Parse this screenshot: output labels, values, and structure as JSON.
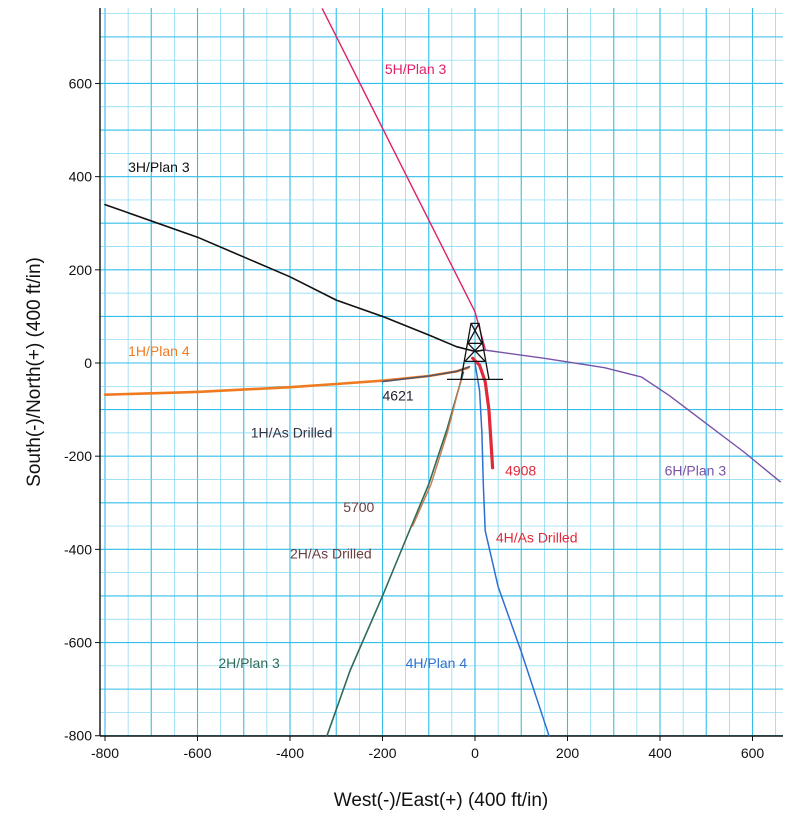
{
  "chart_data": {
    "type": "line",
    "xlabel": "West(-)/East(+) (400 ft/in)",
    "ylabel": "South(-)/North(+) (400 ft/in)",
    "xlim": [
      -800,
      660
    ],
    "ylim": [
      -800,
      760
    ],
    "x_ticks": [
      -800,
      -600,
      -400,
      -200,
      0,
      200,
      400,
      600
    ],
    "y_ticks": [
      -800,
      -600,
      -400,
      -200,
      0,
      200,
      400,
      600
    ],
    "grid": true,
    "colors": {
      "background": "#ffffff",
      "grid_major": "#33bde8",
      "grid_minor": "#7fd6f2"
    },
    "series": [
      {
        "name": "5H/Plan 3",
        "color": "#e0206a",
        "width": 1.4,
        "points": [
          [
            -330,
            760
          ],
          [
            0,
            110
          ],
          [
            22,
            30
          ]
        ]
      },
      {
        "name": "3H/Plan 3",
        "color": "#111111",
        "width": 1.6,
        "points": [
          [
            -800,
            340
          ],
          [
            -600,
            270
          ],
          [
            -400,
            185
          ],
          [
            -300,
            135
          ],
          [
            -200,
            100
          ],
          [
            -100,
            60
          ],
          [
            -40,
            35
          ],
          [
            0,
            25
          ],
          [
            20,
            28
          ]
        ]
      },
      {
        "name": "6H/Plan 3",
        "color": "#7a52a6",
        "width": 1.4,
        "points": [
          [
            20,
            28
          ],
          [
            150,
            10
          ],
          [
            280,
            -10
          ],
          [
            360,
            -30
          ],
          [
            420,
            -70
          ],
          [
            500,
            -130
          ],
          [
            580,
            -190
          ],
          [
            660,
            -255
          ]
        ]
      },
      {
        "name": "1H/Plan 4",
        "color": "#f07a20",
        "width": 2.6,
        "points": [
          [
            -800,
            -68
          ],
          [
            -600,
            -62
          ],
          [
            -400,
            -52
          ],
          [
            -300,
            -45
          ],
          [
            -200,
            -38
          ],
          [
            -100,
            -28
          ],
          [
            -40,
            -18
          ],
          [
            -15,
            -10
          ]
        ]
      },
      {
        "name": "1H/As Drilled",
        "color": "#555566",
        "width": 1.6,
        "points": [
          [
            -200,
            -40
          ],
          [
            -100,
            -28
          ],
          [
            -40,
            -18
          ],
          [
            -12,
            -8
          ]
        ]
      },
      {
        "name": "4H/Plan 4",
        "color": "#2f6fd0",
        "width": 1.5,
        "points": [
          [
            0,
            0
          ],
          [
            10,
            -60
          ],
          [
            15,
            -150
          ],
          [
            18,
            -260
          ],
          [
            22,
            -360
          ],
          [
            50,
            -480
          ],
          [
            100,
            -620
          ],
          [
            160,
            -800
          ]
        ]
      },
      {
        "name": "4H/As Drilled",
        "color": "#e02a3a",
        "width": 3.2,
        "points": [
          [
            -5,
            10
          ],
          [
            10,
            -5
          ],
          [
            22,
            -40
          ],
          [
            30,
            -100
          ],
          [
            34,
            -160
          ],
          [
            38,
            -225
          ]
        ]
      },
      {
        "name": "2H/Plan 3",
        "color": "#2e6b58",
        "width": 1.6,
        "points": [
          [
            -25,
            -20
          ],
          [
            -60,
            -140
          ],
          [
            -100,
            -260
          ],
          [
            -150,
            -380
          ],
          [
            -200,
            -500
          ],
          [
            -270,
            -660
          ],
          [
            -320,
            -800
          ]
        ]
      },
      {
        "name": "2H/As Drilled",
        "color": "#c87a50",
        "width": 1.4,
        "points": [
          [
            -30,
            -35
          ],
          [
            -60,
            -150
          ],
          [
            -95,
            -260
          ],
          [
            -135,
            -350
          ]
        ]
      }
    ],
    "annotations": [
      {
        "text": "5H/Plan 3",
        "x": -195,
        "y": 620,
        "color": "#e0206a"
      },
      {
        "text": "3H/Plan 3",
        "x": -750,
        "y": 410,
        "color": "#111111"
      },
      {
        "text": "1H/Plan 4",
        "x": -750,
        "y": 15,
        "color": "#f07a20"
      },
      {
        "text": "4621",
        "x": -200,
        "y": -80,
        "color": "#222233"
      },
      {
        "text": "1H/As Drilled",
        "x": -485,
        "y": -160,
        "color": "#333344"
      },
      {
        "text": "4908",
        "x": 65,
        "y": -242,
        "color": "#e02a3a"
      },
      {
        "text": "6H/Plan 3",
        "x": 410,
        "y": -242,
        "color": "#7a52a6"
      },
      {
        "text": "5700",
        "x": -285,
        "y": -320,
        "color": "#6a4040"
      },
      {
        "text": "2H/As Drilled",
        "x": -400,
        "y": -420,
        "color": "#6a4040"
      },
      {
        "text": "4H/As Drilled",
        "x": 45,
        "y": -385,
        "color": "#e02a3a"
      },
      {
        "text": "2H/Plan 3",
        "x": -555,
        "y": -655,
        "color": "#2e6b58"
      },
      {
        "text": "4H/Plan 4",
        "x": -150,
        "y": -655,
        "color": "#2f6fd0"
      }
    ]
  }
}
